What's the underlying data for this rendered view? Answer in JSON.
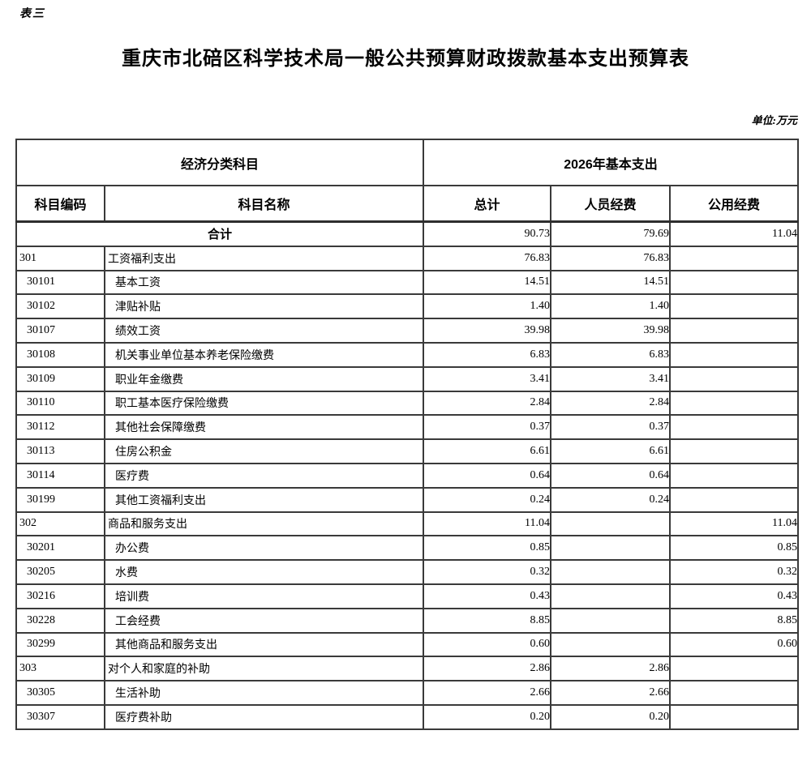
{
  "page": {
    "table_label": "表三",
    "title": "重庆市北碚区科学技术局一般公共预算财政拨款基本支出预算表",
    "unit_note": "单位:万元"
  },
  "table": {
    "header": {
      "group_subject": "经济分类科目",
      "group_year": "2026年基本支出",
      "col_code": "科目编码",
      "col_name": "科目名称",
      "col_total": "总计",
      "col_personnel": "人员经费",
      "col_public": "公用经费"
    },
    "total_row": {
      "name": "合计",
      "total": "90.73",
      "personnel": "79.69",
      "public": "11.04"
    },
    "rows": [
      {
        "code": "301",
        "name": "工资福利支出",
        "total": "76.83",
        "personnel": "76.83",
        "public": "",
        "level": 1
      },
      {
        "code": "30101",
        "name": "基本工资",
        "total": "14.51",
        "personnel": "14.51",
        "public": "",
        "level": 2
      },
      {
        "code": "30102",
        "name": "津贴补贴",
        "total": "1.40",
        "personnel": "1.40",
        "public": "",
        "level": 2
      },
      {
        "code": "30107",
        "name": "绩效工资",
        "total": "39.98",
        "personnel": "39.98",
        "public": "",
        "level": 2
      },
      {
        "code": "30108",
        "name": "机关事业单位基本养老保险缴费",
        "total": "6.83",
        "personnel": "6.83",
        "public": "",
        "level": 2
      },
      {
        "code": "30109",
        "name": "职业年金缴费",
        "total": "3.41",
        "personnel": "3.41",
        "public": "",
        "level": 2
      },
      {
        "code": "30110",
        "name": "职工基本医疗保险缴费",
        "total": "2.84",
        "personnel": "2.84",
        "public": "",
        "level": 2
      },
      {
        "code": "30112",
        "name": "其他社会保障缴费",
        "total": "0.37",
        "personnel": "0.37",
        "public": "",
        "level": 2
      },
      {
        "code": "30113",
        "name": "住房公积金",
        "total": "6.61",
        "personnel": "6.61",
        "public": "",
        "level": 2
      },
      {
        "code": "30114",
        "name": "医疗费",
        "total": "0.64",
        "personnel": "0.64",
        "public": "",
        "level": 2
      },
      {
        "code": "30199",
        "name": "其他工资福利支出",
        "total": "0.24",
        "personnel": "0.24",
        "public": "",
        "level": 2
      },
      {
        "code": "302",
        "name": "商品和服务支出",
        "total": "11.04",
        "personnel": "",
        "public": "11.04",
        "level": 1
      },
      {
        "code": "30201",
        "name": "办公费",
        "total": "0.85",
        "personnel": "",
        "public": "0.85",
        "level": 2
      },
      {
        "code": "30205",
        "name": "水费",
        "total": "0.32",
        "personnel": "",
        "public": "0.32",
        "level": 2
      },
      {
        "code": "30216",
        "name": "培训费",
        "total": "0.43",
        "personnel": "",
        "public": "0.43",
        "level": 2
      },
      {
        "code": "30228",
        "name": "工会经费",
        "total": "8.85",
        "personnel": "",
        "public": "8.85",
        "level": 2
      },
      {
        "code": "30299",
        "name": "其他商品和服务支出",
        "total": "0.60",
        "personnel": "",
        "public": "0.60",
        "level": 2
      },
      {
        "code": "303",
        "name": "对个人和家庭的补助",
        "total": "2.86",
        "personnel": "2.86",
        "public": "",
        "level": 1
      },
      {
        "code": "30305",
        "name": "生活补助",
        "total": "2.66",
        "personnel": "2.66",
        "public": "",
        "level": 2
      },
      {
        "code": "30307",
        "name": "医疗费补助",
        "total": "0.20",
        "personnel": "0.20",
        "public": "",
        "level": 2
      }
    ]
  }
}
